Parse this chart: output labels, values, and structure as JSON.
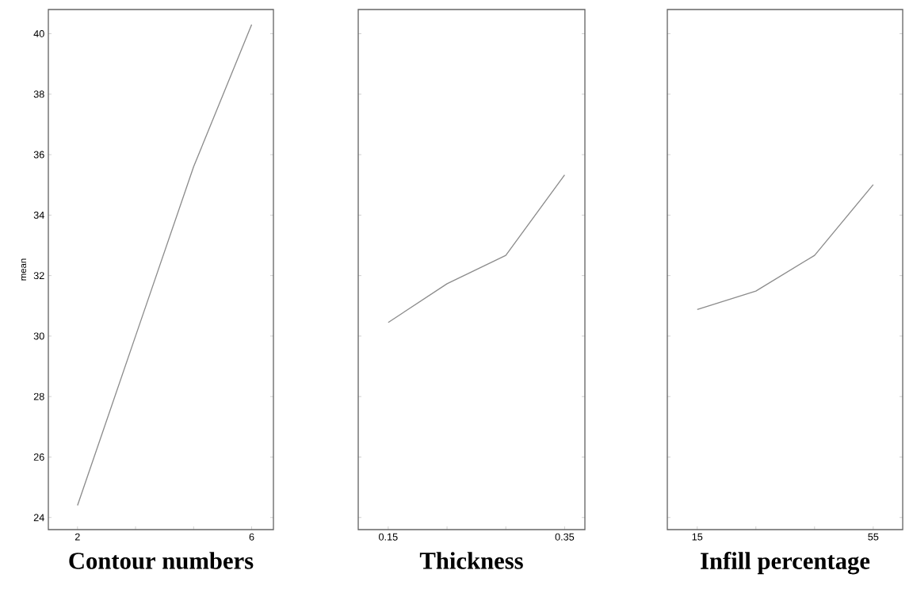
{
  "chart_data": [
    {
      "type": "line",
      "xlabel": "Contour numbers",
      "ylabel": "mean",
      "x": [
        2,
        3.333,
        4.667,
        6
      ],
      "values": [
        24.4,
        30.0,
        35.6,
        40.3
      ],
      "color": "#8c8c8c",
      "marker": "none",
      "xlim": [
        1.33,
        6.5
      ],
      "ylim": [
        23.6,
        40.8
      ],
      "xticks": [
        2,
        {
          "value": 3.333,
          "label": null
        },
        {
          "value": 4.667,
          "label": null
        },
        6
      ],
      "yticks": [
        24,
        26,
        28,
        30,
        32,
        34,
        36,
        38,
        40
      ]
    },
    {
      "type": "line",
      "xlabel": "Thickness",
      "x": [
        0.15,
        0.2167,
        0.2833,
        0.35
      ],
      "values": [
        30.45,
        31.73,
        32.67,
        35.33
      ],
      "color": "#8c8c8c",
      "marker": "none",
      "xlim": [
        0.116,
        0.373
      ],
      "ylim": [
        23.6,
        40.8
      ],
      "xticks": [
        0.15,
        {
          "value": 0.2167,
          "label": null
        },
        {
          "value": 0.2833,
          "label": null
        },
        0.35
      ],
      "yticks": [
        24,
        26,
        28,
        30,
        32,
        34,
        36,
        38,
        40
      ],
      "tick_labels": "x"
    },
    {
      "type": "line",
      "xlabel": "Infill percentage",
      "x": [
        15,
        28.33,
        41.67,
        55
      ],
      "values": [
        30.88,
        31.49,
        32.67,
        35.01
      ],
      "color": "#8c8c8c",
      "marker": "none",
      "xlim": [
        8.2,
        61.7
      ],
      "ylim": [
        23.6,
        40.8
      ],
      "xticks": [
        15,
        {
          "value": 28.33,
          "label": null
        },
        {
          "value": 41.67,
          "label": null
        },
        55
      ],
      "yticks": [
        24,
        26,
        28,
        30,
        32,
        34,
        36,
        38,
        40
      ],
      "tick_labels": "x"
    }
  ]
}
